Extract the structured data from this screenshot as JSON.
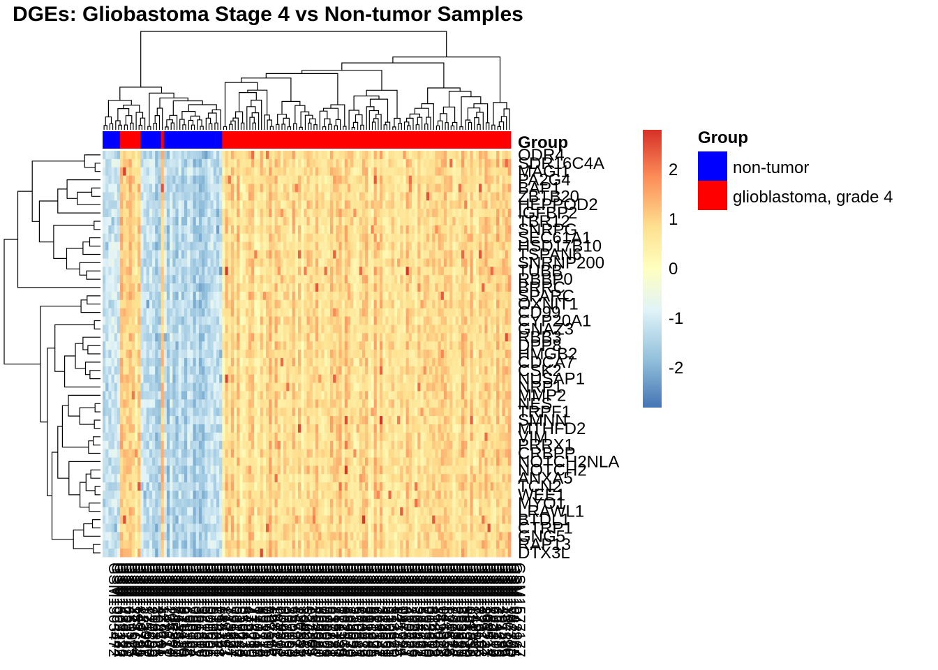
{
  "chart_data": {
    "type": "heatmap",
    "title": "DGEs: Gliobastoma Stage 4 vs Non-tumor Samples",
    "color_scale": {
      "min": -2.8,
      "max": 2.8,
      "ticks": [
        2,
        1,
        0,
        -1,
        -2
      ],
      "colors": [
        "#4575B4",
        "#91BFDB",
        "#E0F3F8",
        "#FFFFBF",
        "#FEE090",
        "#FC8D59",
        "#D73027"
      ]
    },
    "annotation": {
      "title": "Group",
      "legend": [
        {
          "label": "non-tumor",
          "color": "#0000FF"
        },
        {
          "label": "glioblastoma, grade 4",
          "color": "#FF0000"
        }
      ],
      "column_groups": [
        {
          "group": "non-tumor",
          "count": 6
        },
        {
          "group": "glioblastoma, grade 4",
          "count": 7
        },
        {
          "group": "non-tumor",
          "count": 7
        },
        {
          "group": "glioblastoma, grade 4",
          "count": 1
        },
        {
          "group": "non-tumor",
          "count": 20
        },
        {
          "group": "glioblastoma, grade 4",
          "count": 99
        }
      ]
    },
    "rows": [
      "ODR4",
      "SDR16C4A",
      "MAGI1",
      "PA2G4",
      "BAP1",
      "ZBTB20",
      "HEPPOD2",
      "IGFBP2",
      "TBR12",
      "SNRPG",
      "SEC61A1",
      "HSD17B10",
      "TSPAN6",
      "SNRNP200",
      "TUBB",
      "RBBP0",
      "BRRC",
      "SPARC",
      "OXNIT1",
      "CD99",
      "CYP20A1",
      "GNAZ3",
      "RBB3",
      "DPP8",
      "HMGB2",
      "CDCA7",
      "CSK2",
      "NUSAP1",
      "NRP1",
      "MMP2",
      "NES",
      "TRPF1",
      "SMNN",
      "MTHFD2",
      "VIM",
      "PRRX1",
      "CRBPP",
      "NOTCH2NLA",
      "NOTCH2",
      "ANXA5",
      "TCN2",
      "WEE1",
      "MYO1",
      "LRAWL1",
      "BTDL1",
      "CTRP1",
      "GNG5",
      "RAP13",
      "DTX3L"
    ],
    "n_columns": 140,
    "column_label_prefix": "GSM"
  }
}
